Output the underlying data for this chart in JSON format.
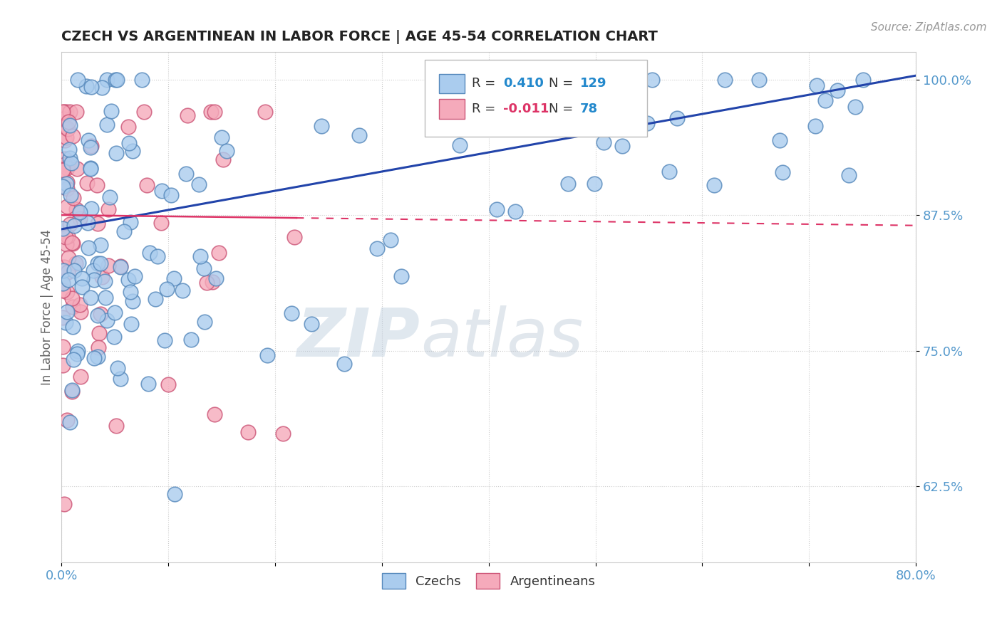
{
  "title": "CZECH VS ARGENTINEAN IN LABOR FORCE | AGE 45-54 CORRELATION CHART",
  "source_text": "Source: ZipAtlas.com",
  "ylabel": "In Labor Force | Age 45-54",
  "xlim": [
    0.0,
    0.8
  ],
  "ylim": [
    0.555,
    1.025
  ],
  "ytick_positions": [
    0.625,
    0.75,
    0.875,
    1.0
  ],
  "ytick_labels": [
    "62.5%",
    "75.0%",
    "87.5%",
    "100.0%"
  ],
  "czech_R": 0.41,
  "czech_N": 129,
  "arg_R": -0.011,
  "arg_N": 78,
  "czech_color": "#aaccee",
  "czech_edge": "#5588bb",
  "arg_color": "#f5aabb",
  "arg_edge": "#cc5577",
  "blue_line_color": "#2244aa",
  "pink_line_color": "#dd3366",
  "watermark_zip": "ZIP",
  "watermark_atlas": "atlas",
  "background_color": "#ffffff",
  "title_color": "#222222",
  "axis_label_color": "#5599cc",
  "legend_R_color_czech": "#2288cc",
  "legend_R_color_arg": "#cc2255",
  "legend_N_color": "#2288cc"
}
